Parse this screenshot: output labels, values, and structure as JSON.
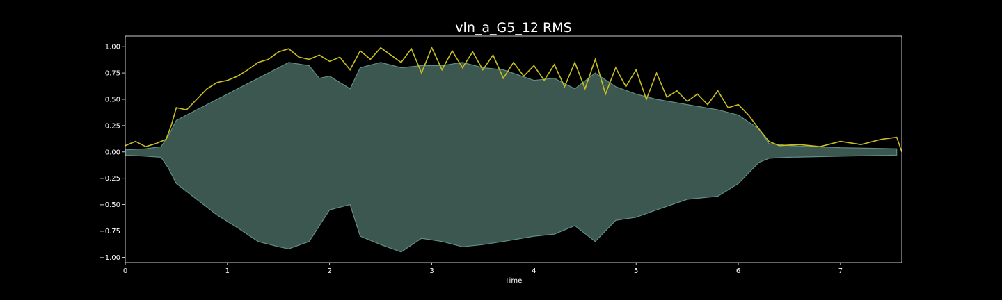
{
  "chart_data": {
    "type": "area",
    "title": "vln_a_G5_12 RMS",
    "xlabel": "Time",
    "ylabel": "",
    "xlim": [
      0,
      7.6
    ],
    "ylim": [
      -1.05,
      1.1
    ],
    "xticks": [
      0,
      1,
      2,
      3,
      4,
      5,
      6,
      7
    ],
    "xtick_labels": [
      "0",
      "1",
      "2",
      "3",
      "4",
      "5",
      "6",
      "7"
    ],
    "yticks": [
      1.0,
      0.75,
      0.5,
      0.25,
      0.0,
      -0.25,
      -0.5,
      -0.75,
      -1.0
    ],
    "ytick_labels": [
      "1.00",
      "0.75",
      "0.50",
      "0.25",
      "0.00",
      "−0.25",
      "−0.50",
      "−0.75",
      "−1.00"
    ],
    "grid": false,
    "background": "#000000",
    "series": [
      {
        "role": "waveform-envelope",
        "color": "#5f8f86",
        "fill_color": "#3b5750",
        "x": [
          0,
          0.2,
          0.35,
          0.42,
          0.5,
          0.7,
          0.9,
          1.1,
          1.3,
          1.5,
          1.6,
          1.8,
          1.9,
          2.0,
          2.2,
          2.3,
          2.5,
          2.7,
          2.9,
          3.1,
          3.3,
          3.5,
          3.7,
          4.0,
          4.2,
          4.4,
          4.6,
          4.8,
          5.0,
          5.2,
          5.5,
          5.8,
          6.0,
          6.2,
          6.3,
          6.5,
          7.0,
          7.55
        ],
        "upper": [
          0.02,
          0.03,
          0.05,
          0.15,
          0.3,
          0.4,
          0.5,
          0.6,
          0.7,
          0.8,
          0.85,
          0.82,
          0.7,
          0.72,
          0.6,
          0.8,
          0.85,
          0.8,
          0.82,
          0.82,
          0.85,
          0.8,
          0.78,
          0.68,
          0.7,
          0.6,
          0.75,
          0.62,
          0.55,
          0.5,
          0.45,
          0.4,
          0.35,
          0.22,
          0.08,
          0.06,
          0.04,
          0.03
        ],
        "lower": [
          -0.03,
          -0.04,
          -0.05,
          -0.15,
          -0.3,
          -0.45,
          -0.6,
          -0.72,
          -0.85,
          -0.9,
          -0.92,
          -0.85,
          -0.7,
          -0.55,
          -0.5,
          -0.8,
          -0.88,
          -0.95,
          -0.82,
          -0.85,
          -0.9,
          -0.88,
          -0.85,
          -0.8,
          -0.78,
          -0.7,
          -0.85,
          -0.65,
          -0.62,
          -0.55,
          -0.45,
          -0.42,
          -0.3,
          -0.1,
          -0.06,
          -0.05,
          -0.04,
          -0.03
        ]
      },
      {
        "role": "rms",
        "color": "#c8c020",
        "x": [
          0,
          0.1,
          0.2,
          0.3,
          0.4,
          0.45,
          0.5,
          0.6,
          0.7,
          0.8,
          0.9,
          1.0,
          1.1,
          1.2,
          1.3,
          1.4,
          1.5,
          1.6,
          1.7,
          1.8,
          1.9,
          2.0,
          2.1,
          2.2,
          2.3,
          2.4,
          2.5,
          2.6,
          2.7,
          2.8,
          2.9,
          3.0,
          3.1,
          3.2,
          3.3,
          3.4,
          3.5,
          3.6,
          3.7,
          3.8,
          3.9,
          4.0,
          4.1,
          4.2,
          4.3,
          4.4,
          4.5,
          4.6,
          4.7,
          4.8,
          4.9,
          5.0,
          5.1,
          5.2,
          5.3,
          5.4,
          5.5,
          5.6,
          5.7,
          5.8,
          5.9,
          6.0,
          6.1,
          6.2,
          6.3,
          6.4,
          6.6,
          6.8,
          7.0,
          7.2,
          7.4,
          7.55,
          7.6
        ],
        "y": [
          0.06,
          0.1,
          0.05,
          0.08,
          0.12,
          0.25,
          0.42,
          0.4,
          0.5,
          0.6,
          0.66,
          0.68,
          0.72,
          0.78,
          0.85,
          0.88,
          0.95,
          0.98,
          0.9,
          0.88,
          0.92,
          0.86,
          0.9,
          0.78,
          0.96,
          0.88,
          0.99,
          0.92,
          0.85,
          0.98,
          0.75,
          0.99,
          0.78,
          0.96,
          0.8,
          0.95,
          0.78,
          0.92,
          0.7,
          0.85,
          0.72,
          0.82,
          0.68,
          0.83,
          0.62,
          0.85,
          0.6,
          0.88,
          0.55,
          0.8,
          0.62,
          0.78,
          0.5,
          0.75,
          0.52,
          0.58,
          0.48,
          0.55,
          0.45,
          0.58,
          0.42,
          0.45,
          0.35,
          0.22,
          0.1,
          0.06,
          0.07,
          0.05,
          0.1,
          0.07,
          0.12,
          0.14,
          0.0
        ]
      }
    ]
  }
}
